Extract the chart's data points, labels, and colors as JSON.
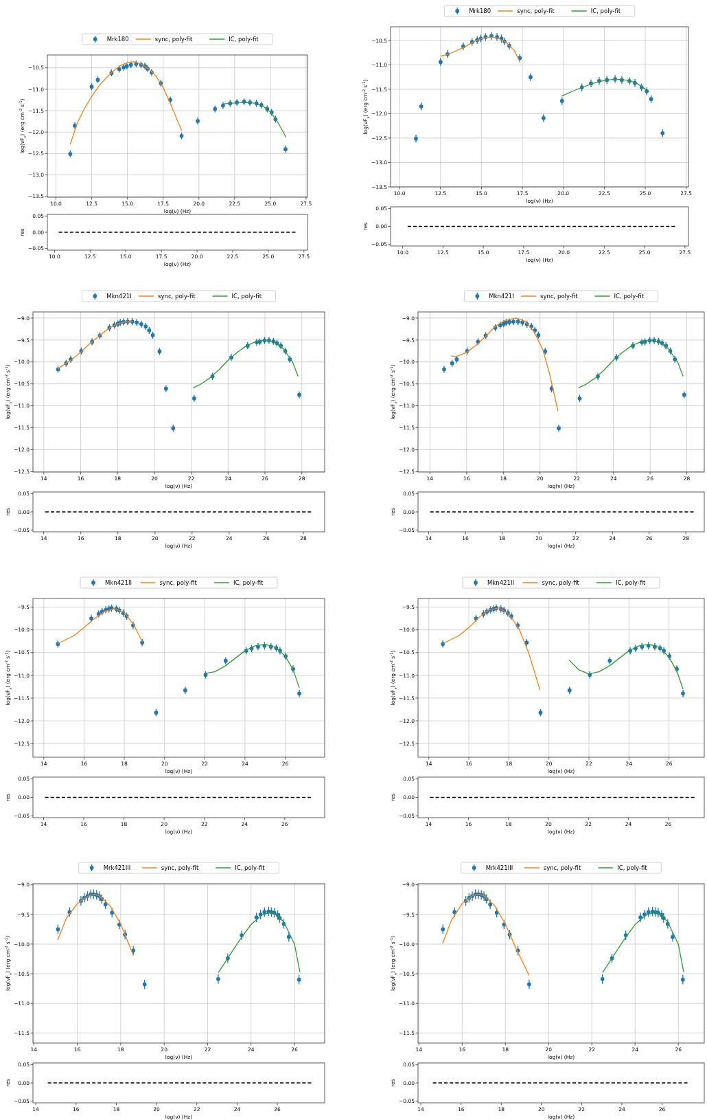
{
  "chart_data": [
    {
      "type": "scatter",
      "xlabel": "log(ν)  (Hz)",
      "ylabel": "log(νF$_{ν}$)  (erg cm$^{-2}$ s$^{-1}$)",
      "xlim": [
        9.4,
        27.6
      ],
      "ylim": [
        -13.52,
        -10.2
      ],
      "xticks": [
        {
          "value": 10,
          "label": "10.0"
        },
        12.5,
        {
          "value": 15,
          "label": "15.0"
        },
        17.5,
        {
          "value": 20,
          "label": "20.0"
        },
        22.5,
        {
          "value": 25,
          "label": "25.0"
        },
        27.5
      ],
      "yticks": [
        {
          "value": -10.5,
          "label": "−10.5"
        },
        {
          "value": -11,
          "label": "−11.0"
        },
        {
          "value": -11.5,
          "label": "−11.5"
        },
        {
          "value": -12,
          "label": "−12.0"
        },
        {
          "value": -12.5,
          "label": "−12.5"
        },
        {
          "value": -13,
          "label": "−13.0"
        },
        {
          "value": -13.5,
          "label": "−13.5"
        }
      ],
      "grid": true,
      "legend": "top",
      "series": [
        {
          "type": "scatter",
          "name": "Mrk180",
          "color": "#1f77b4",
          "marker": "circle",
          "x": [
            11.0,
            11.32,
            12.5,
            12.93,
            13.89,
            14.43,
            14.74,
            14.96,
            15.25,
            15.61,
            15.95,
            16.22,
            16.41,
            16.7,
            17.34,
            18.0,
            18.79,
            19.92,
            21.13,
            21.69,
            22.19,
            22.66,
            23.16,
            23.57,
            24.03,
            24.37,
            24.78,
            25.09,
            25.36,
            26.06
          ],
          "values": [
            -12.51,
            -11.85,
            -10.94,
            -10.78,
            -10.62,
            -10.53,
            -10.49,
            -10.46,
            -10.43,
            -10.41,
            -10.43,
            -10.46,
            -10.52,
            -10.61,
            -10.86,
            -11.25,
            -12.09,
            -11.74,
            -11.46,
            -11.38,
            -11.33,
            -11.31,
            -11.29,
            -11.31,
            -11.33,
            -11.37,
            -11.46,
            -11.54,
            -11.7,
            -12.4
          ],
          "errors": [
            0.08,
            0.08,
            0.08,
            0.08,
            0.08,
            0.08,
            0.08,
            0.08,
            0.08,
            0.08,
            0.08,
            0.08,
            0.08,
            0.08,
            0.08,
            0.08,
            0.08,
            0.08,
            0.08,
            0.08,
            0.08,
            0.08,
            0.08,
            0.08,
            0.08,
            0.08,
            0.08,
            0.08,
            0.08,
            0.08
          ]
        },
        {
          "type": "line",
          "name": "sync, poly-fit",
          "color": "#ff7f0e",
          "x": [
            11.0,
            11.5,
            12.0,
            12.5,
            13.0,
            13.5,
            14.0,
            14.5,
            15.0,
            15.5,
            16.0,
            16.5,
            17.0,
            17.5,
            18.0,
            18.5,
            18.8
          ],
          "values": [
            -12.29,
            -11.78,
            -11.45,
            -11.17,
            -10.93,
            -10.74,
            -10.58,
            -10.45,
            -10.38,
            -10.36,
            -10.42,
            -10.53,
            -10.69,
            -10.96,
            -11.33,
            -11.73,
            -11.97
          ]
        },
        {
          "type": "line",
          "name": "IC, poly-fit",
          "color": "#2ca02c",
          "x": [
            21.7,
            22.5,
            23.3,
            24.0,
            24.5,
            25.0,
            25.5,
            26.1
          ],
          "values": [
            -11.34,
            -11.32,
            -11.31,
            -11.33,
            -11.4,
            -11.53,
            -11.76,
            -12.12
          ]
        }
      ]
    },
    {
      "type": "scatter",
      "xlabel": "log(ν)  (Hz)",
      "ylabel": "log(νF$_{ν}$)  (erg cm$^{-2}$ s$^{-1}$)",
      "xlim": [
        9.45,
        27.64
      ],
      "ylim": [
        -13.5,
        -10.22
      ],
      "xticks": [
        {
          "value": 10,
          "label": "10.0"
        },
        12.5,
        {
          "value": 15,
          "label": "15.0"
        },
        17.5,
        {
          "value": 20,
          "label": "20.0"
        },
        22.5,
        {
          "value": 25,
          "label": "25.0"
        },
        27.5
      ],
      "yticks": [
        {
          "value": -10.5,
          "label": "−10.5"
        },
        {
          "value": -11,
          "label": "−11.0"
        },
        {
          "value": -11.5,
          "label": "−11.5"
        },
        {
          "value": -12,
          "label": "−12.0"
        },
        {
          "value": -12.5,
          "label": "−12.5"
        },
        {
          "value": -13,
          "label": "−13.0"
        },
        {
          "value": -13.5,
          "label": "−13.5"
        }
      ],
      "grid": true,
      "legend": "top",
      "series": [
        {
          "type": "scatter",
          "name": "Mrk180",
          "color": "#1f77b4",
          "marker": "circle",
          "x": [
            11.0,
            11.32,
            12.5,
            12.93,
            13.89,
            14.43,
            14.74,
            14.96,
            15.25,
            15.61,
            15.95,
            16.22,
            16.41,
            16.7,
            17.34,
            18.0,
            18.79,
            19.92,
            21.13,
            21.69,
            22.19,
            22.66,
            23.16,
            23.57,
            24.03,
            24.37,
            24.78,
            25.09,
            25.36,
            26.06
          ],
          "values": [
            -12.51,
            -11.85,
            -10.94,
            -10.78,
            -10.62,
            -10.53,
            -10.49,
            -10.46,
            -10.43,
            -10.41,
            -10.43,
            -10.46,
            -10.52,
            -10.61,
            -10.86,
            -11.25,
            -12.09,
            -11.74,
            -11.46,
            -11.38,
            -11.33,
            -11.31,
            -11.29,
            -11.31,
            -11.33,
            -11.37,
            -11.46,
            -11.54,
            -11.7,
            -12.4
          ],
          "errors": [
            0.08,
            0.08,
            0.08,
            0.08,
            0.08,
            0.08,
            0.08,
            0.08,
            0.08,
            0.08,
            0.08,
            0.08,
            0.08,
            0.08,
            0.08,
            0.08,
            0.08,
            0.08,
            0.08,
            0.08,
            0.08,
            0.08,
            0.08,
            0.08,
            0.08,
            0.08,
            0.08,
            0.08,
            0.08,
            0.08
          ]
        },
        {
          "type": "line",
          "name": "sync, poly-fit",
          "color": "#ff7f0e",
          "x": [
            12.5,
            13.0,
            14.0,
            14.5,
            15.0,
            15.5,
            16.0,
            16.5,
            17.0,
            17.35
          ],
          "values": [
            -10.82,
            -10.78,
            -10.63,
            -10.53,
            -10.46,
            -10.43,
            -10.45,
            -10.54,
            -10.7,
            -10.93
          ]
        },
        {
          "type": "line",
          "name": "IC, poly-fit",
          "color": "#2ca02c",
          "x": [
            19.9,
            20.5,
            21.0,
            21.5,
            22.0,
            22.5,
            23.0,
            23.5,
            24.0,
            24.5,
            25.1
          ],
          "values": [
            -11.64,
            -11.55,
            -11.48,
            -11.42,
            -11.36,
            -11.32,
            -11.3,
            -11.3,
            -11.32,
            -11.38,
            -11.52
          ]
        }
      ]
    },
    {
      "type": "line",
      "xlabel": "log(ν)  (Hz)",
      "ylabel": "res",
      "xlim": [
        9.5,
        27.75
      ],
      "ylim": [
        -0.055,
        0.055
      ],
      "xticks": [
        {
          "value": 10,
          "label": "10.0"
        },
        12.5,
        {
          "value": 15,
          "label": "15.0"
        },
        17.5,
        {
          "value": 20,
          "label": "20.0"
        },
        22.5,
        {
          "value": 25,
          "label": "25.0"
        },
        27.5
      ],
      "yticks": [
        {
          "value": 0.05,
          "label": "0.05"
        },
        {
          "value": 0,
          "label": "0.00"
        },
        {
          "value": -0.05,
          "label": "−0.05"
        }
      ],
      "series": [
        {
          "color": "#000000",
          "line_style": "dashed",
          "x": [
            10.3,
            26.9
          ],
          "values": [
            0,
            0
          ]
        }
      ]
    },
    {
      "type": "line",
      "xlabel": "log(ν)  (Hz)",
      "ylabel": "res",
      "xlim": [
        9.25,
        27.72
      ],
      "ylim": [
        -0.055,
        0.055
      ],
      "xticks": [
        {
          "value": 10,
          "label": "10.0"
        },
        12.5,
        {
          "value": 15,
          "label": "15.0"
        },
        17.5,
        {
          "value": 20,
          "label": "20.0"
        },
        22.5,
        {
          "value": 25,
          "label": "25.0"
        },
        27.5
      ],
      "yticks": [
        {
          "value": 0.05,
          "label": "0.05"
        },
        {
          "value": 0,
          "label": "0.00"
        },
        {
          "value": -0.05,
          "label": "−0.05"
        }
      ],
      "series": [
        {
          "color": "#000000",
          "line_style": "dashed",
          "x": [
            10.31,
            26.88
          ],
          "values": [
            0,
            0
          ]
        }
      ]
    },
    {
      "type": "scatter",
      "xlabel": "log(ν)  (Hz)",
      "ylabel": "log(νF$_{ν}$)  (erg cm$^{-2}$ s$^{-1}$)",
      "xlim": [
        13.41,
        29.24
      ],
      "ylim": [
        -12.51,
        -8.86
      ],
      "xticks": [
        14,
        16,
        18,
        20,
        22,
        24,
        26,
        28
      ],
      "yticks": [
        {
          "value": -9,
          "label": "−9.0"
        },
        {
          "value": -9.5,
          "label": "−9.5"
        },
        {
          "value": -10,
          "label": "−10.0"
        },
        {
          "value": -10.5,
          "label": "−10.5"
        },
        {
          "value": -11,
          "label": "−11.0"
        },
        {
          "value": -11.5,
          "label": "−11.5"
        },
        {
          "value": -12,
          "label": "−12.0"
        },
        {
          "value": -12.5,
          "label": "−12.5"
        }
      ],
      "grid": true,
      "legend": "top",
      "series": [
        {
          "type": "scatter",
          "name": "Mkn421I",
          "color": "#1f77b4",
          "marker": "circle",
          "x": [
            14.77,
            15.21,
            15.46,
            16.03,
            16.62,
            17.04,
            17.56,
            17.83,
            18.02,
            18.15,
            18.33,
            18.55,
            18.8,
            19.04,
            19.29,
            19.53,
            19.72,
            19.91,
            20.28,
            20.63,
            21.02,
            22.16,
            23.15,
            24.17,
            25.06,
            25.55,
            25.72,
            25.98,
            26.22,
            26.46,
            26.65,
            26.86,
            27.1,
            27.35,
            27.86
          ],
          "values": [
            -10.17,
            -10.03,
            -9.94,
            -9.75,
            -9.54,
            -9.4,
            -9.22,
            -9.16,
            -9.13,
            -9.1,
            -9.09,
            -9.08,
            -9.08,
            -9.1,
            -9.14,
            -9.19,
            -9.28,
            -9.39,
            -9.76,
            -10.61,
            -11.51,
            -10.83,
            -10.33,
            -9.9,
            -9.63,
            -9.55,
            -9.54,
            -9.51,
            -9.51,
            -9.53,
            -9.57,
            -9.63,
            -9.75,
            -9.94,
            -10.75
          ],
          "errors": [
            0.08,
            0.08,
            0.08,
            0.08,
            0.08,
            0.08,
            0.08,
            0.08,
            0.08,
            0.08,
            0.08,
            0.08,
            0.08,
            0.08,
            0.08,
            0.08,
            0.08,
            0.08,
            0.08,
            0.08,
            0.08,
            0.08,
            0.08,
            0.08,
            0.08,
            0.08,
            0.08,
            0.08,
            0.08,
            0.08,
            0.08,
            0.08,
            0.08,
            0.08,
            0.08
          ]
        },
        {
          "type": "line",
          "name": "sync, poly-fit",
          "color": "#ff7f0e",
          "x": [
            14.77,
            15.5,
            16.0,
            16.5,
            17.0,
            17.5,
            18.0,
            18.5,
            18.8
          ],
          "values": [
            -10.15,
            -9.95,
            -9.78,
            -9.58,
            -9.41,
            -9.24,
            -9.13,
            -9.08,
            -9.07
          ]
        },
        {
          "type": "line",
          "name": "IC, poly-fit",
          "color": "#2ca02c",
          "x": [
            22.1,
            22.5,
            23.0,
            23.5,
            24.0,
            24.5,
            25.0,
            25.5,
            26.0,
            26.5,
            27.0,
            27.5,
            27.8
          ],
          "values": [
            -10.59,
            -10.51,
            -10.37,
            -10.18,
            -9.96,
            -9.78,
            -9.63,
            -9.54,
            -9.5,
            -9.54,
            -9.7,
            -10.0,
            -10.33
          ]
        }
      ]
    },
    {
      "type": "scatter",
      "xlabel": "log(ν)  (Hz)",
      "ylabel": "log(νF$_{ν}$)  (erg cm$^{-2}$ s$^{-1}$)",
      "xlim": [
        13.35,
        28.95
      ],
      "ylim": [
        -12.51,
        -8.86
      ],
      "xticks": [
        14,
        16,
        18,
        20,
        22,
        24,
        26,
        28
      ],
      "yticks": [
        {
          "value": -9,
          "label": "−9.0"
        },
        {
          "value": -9.5,
          "label": "−9.5"
        },
        {
          "value": -10,
          "label": "−10.0"
        },
        {
          "value": -10.5,
          "label": "−10.5"
        },
        {
          "value": -11,
          "label": "−11.0"
        },
        {
          "value": -11.5,
          "label": "−11.5"
        },
        {
          "value": -12,
          "label": "−12.0"
        },
        {
          "value": -12.5,
          "label": "−12.5"
        }
      ],
      "grid": true,
      "legend": "top",
      "series": [
        {
          "type": "scatter",
          "name": "Mkn421I",
          "color": "#1f77b4",
          "marker": "circle",
          "x": [
            14.77,
            15.21,
            15.46,
            16.03,
            16.62,
            17.04,
            17.56,
            17.83,
            18.02,
            18.15,
            18.33,
            18.55,
            18.8,
            19.04,
            19.29,
            19.53,
            19.72,
            19.91,
            20.28,
            20.63,
            21.02,
            22.16,
            23.15,
            24.17,
            25.06,
            25.55,
            25.72,
            25.98,
            26.22,
            26.46,
            26.65,
            26.86,
            27.1,
            27.35,
            27.86
          ],
          "values": [
            -10.17,
            -10.03,
            -9.94,
            -9.75,
            -9.54,
            -9.4,
            -9.22,
            -9.16,
            -9.13,
            -9.1,
            -9.09,
            -9.08,
            -9.08,
            -9.1,
            -9.14,
            -9.19,
            -9.28,
            -9.39,
            -9.76,
            -10.61,
            -11.51,
            -10.83,
            -10.33,
            -9.9,
            -9.63,
            -9.55,
            -9.54,
            -9.51,
            -9.51,
            -9.53,
            -9.57,
            -9.63,
            -9.75,
            -9.94,
            -10.75
          ],
          "errors": [
            0.08,
            0.08,
            0.08,
            0.08,
            0.08,
            0.08,
            0.08,
            0.08,
            0.08,
            0.08,
            0.08,
            0.08,
            0.08,
            0.08,
            0.08,
            0.08,
            0.08,
            0.08,
            0.08,
            0.08,
            0.08,
            0.08,
            0.08,
            0.08,
            0.08,
            0.08,
            0.08,
            0.08,
            0.08,
            0.08,
            0.08,
            0.08,
            0.08,
            0.08,
            0.08
          ]
        },
        {
          "type": "line",
          "name": "sync, poly-fit",
          "color": "#ff7f0e",
          "x": [
            15.16,
            15.41,
            15.96,
            16.58,
            17.07,
            17.56,
            18.06,
            18.67,
            19.17,
            19.66,
            20.15,
            20.52,
            20.98
          ],
          "values": [
            -9.86,
            -9.88,
            -9.79,
            -9.6,
            -9.4,
            -9.19,
            -9.06,
            -9.0,
            -9.07,
            -9.3,
            -9.72,
            -10.27,
            -11.12
          ]
        },
        {
          "type": "line",
          "name": "IC, poly-fit",
          "color": "#2ca02c",
          "x": [
            22.1,
            22.5,
            23.0,
            23.5,
            24.0,
            24.5,
            25.0,
            25.5,
            26.0,
            26.5,
            27.0,
            27.5,
            27.8
          ],
          "values": [
            -10.59,
            -10.51,
            -10.37,
            -10.18,
            -9.96,
            -9.78,
            -9.63,
            -9.54,
            -9.5,
            -9.54,
            -9.7,
            -10.0,
            -10.33
          ]
        }
      ]
    },
    {
      "type": "line",
      "xlabel": "log(ν)  (Hz)",
      "ylabel": "res",
      "xlim": [
        13.42,
        29.15
      ],
      "ylim": [
        -0.055,
        0.055
      ],
      "xticks": [
        14,
        16,
        18,
        20,
        22,
        24,
        26,
        28
      ],
      "yticks": [
        {
          "value": 0.05,
          "label": "0.05"
        },
        {
          "value": 0,
          "label": "0.00"
        },
        {
          "value": -0.05,
          "label": "−0.05"
        }
      ],
      "series": [
        {
          "color": "#000000",
          "line_style": "dashed",
          "x": [
            14.08,
            28.42
          ],
          "values": [
            0,
            0
          ]
        }
      ]
    },
    {
      "type": "line",
      "xlabel": "log(ν)  (Hz)",
      "ylabel": "res",
      "xlim": [
        13.42,
        29.0
      ],
      "ylim": [
        -0.055,
        0.055
      ],
      "xticks": [
        14,
        16,
        18,
        20,
        22,
        24,
        26,
        28
      ],
      "yticks": [
        {
          "value": 0.05,
          "label": "0.05"
        },
        {
          "value": 0,
          "label": "0.00"
        },
        {
          "value": -0.05,
          "label": "−0.05"
        }
      ],
      "series": [
        {
          "color": "#000000",
          "line_style": "dashed",
          "x": [
            14.08,
            28.42
          ],
          "values": [
            0,
            0
          ]
        }
      ]
    },
    {
      "type": "scatter",
      "xlabel": "log(ν)  (Hz)",
      "ylabel": "log(νF$_{ν}$)  (erg cm$^{-2}$ s$^{-1}$)",
      "xlim": [
        13.46,
        27.96
      ],
      "ylim": [
        -12.8,
        -9.31
      ],
      "xticks": [
        14,
        16,
        18,
        20,
        22,
        24,
        26
      ],
      "yticks": [
        {
          "value": -9.5,
          "label": "−9.5"
        },
        {
          "value": -10,
          "label": "−10.0"
        },
        {
          "value": -10.5,
          "label": "−10.5"
        },
        {
          "value": -11,
          "label": "−11.0"
        },
        {
          "value": -11.5,
          "label": "−11.5"
        },
        {
          "value": -12,
          "label": "−12.0"
        },
        {
          "value": -12.5,
          "label": "−12.5"
        }
      ],
      "grid": true,
      "legend": "top",
      "series": [
        {
          "type": "scatter",
          "name": "Mkn421II",
          "color": "#1f77b4",
          "marker": "circle",
          "x": [
            14.7,
            16.36,
            16.73,
            16.9,
            17.08,
            17.24,
            17.37,
            17.6,
            17.75,
            17.95,
            18.12,
            18.44,
            18.89,
            19.58,
            21.03,
            22.04,
            23.04,
            24.06,
            24.33,
            24.65,
            24.97,
            25.29,
            25.55,
            25.74,
            26.02,
            26.39,
            26.7
          ],
          "values": [
            -10.31,
            -9.75,
            -9.65,
            -9.6,
            -9.56,
            -9.54,
            -9.52,
            -9.54,
            -9.57,
            -9.63,
            -9.7,
            -9.9,
            -10.28,
            -11.82,
            -11.33,
            -10.99,
            -10.68,
            -10.46,
            -10.41,
            -10.37,
            -10.35,
            -10.37,
            -10.4,
            -10.46,
            -10.58,
            -10.86,
            -11.4
          ],
          "errors": [
            0.08,
            0.08,
            0.08,
            0.08,
            0.08,
            0.08,
            0.08,
            0.08,
            0.08,
            0.08,
            0.08,
            0.08,
            0.08,
            0.08,
            0.08,
            0.08,
            0.08,
            0.08,
            0.08,
            0.08,
            0.08,
            0.08,
            0.08,
            0.08,
            0.08,
            0.08,
            0.08
          ]
        },
        {
          "type": "line",
          "name": "sync, poly-fit",
          "color": "#ff7f0e",
          "x": [
            14.7,
            15.5,
            16.0,
            16.5,
            17.0,
            17.5,
            18.0,
            18.5,
            18.9
          ],
          "values": [
            -10.3,
            -10.13,
            -9.95,
            -9.76,
            -9.6,
            -9.53,
            -9.62,
            -9.91,
            -10.27
          ]
        },
        {
          "type": "line",
          "name": "IC, poly-fit",
          "color": "#2ca02c",
          "x": [
            22.0,
            22.5,
            23.0,
            23.5,
            24.0,
            24.5,
            25.0,
            25.5,
            26.0,
            26.4,
            26.7
          ],
          "values": [
            -10.96,
            -10.92,
            -10.8,
            -10.63,
            -10.46,
            -10.35,
            -10.32,
            -10.38,
            -10.58,
            -10.88,
            -11.28
          ]
        }
      ]
    },
    {
      "type": "scatter",
      "xlabel": "log(ν)  (Hz)",
      "ylabel": "log(νF$_{ν}$)  (erg cm$^{-2}$ s$^{-1}$)",
      "xlim": [
        13.46,
        27.76
      ],
      "ylim": [
        -12.8,
        -9.31
      ],
      "xticks": [
        14,
        16,
        18,
        20,
        22,
        24,
        26
      ],
      "yticks": [
        {
          "value": -9.5,
          "label": "−9.5"
        },
        {
          "value": -10,
          "label": "−10.0"
        },
        {
          "value": -10.5,
          "label": "−10.5"
        },
        {
          "value": -11,
          "label": "−11.0"
        },
        {
          "value": -11.5,
          "label": "−11.5"
        },
        {
          "value": -12,
          "label": "−12.0"
        },
        {
          "value": -12.5,
          "label": "−12.5"
        }
      ],
      "grid": true,
      "legend": "top",
      "series": [
        {
          "type": "scatter",
          "name": "Mkn421II",
          "color": "#1f77b4",
          "marker": "circle",
          "x": [
            14.7,
            16.36,
            16.73,
            16.9,
            17.08,
            17.24,
            17.37,
            17.6,
            17.75,
            17.95,
            18.12,
            18.44,
            18.89,
            19.58,
            21.03,
            22.04,
            23.04,
            24.06,
            24.33,
            24.65,
            24.97,
            25.29,
            25.55,
            25.74,
            26.02,
            26.39,
            26.7
          ],
          "values": [
            -10.31,
            -9.75,
            -9.65,
            -9.6,
            -9.56,
            -9.54,
            -9.52,
            -9.54,
            -9.57,
            -9.63,
            -9.7,
            -9.9,
            -10.28,
            -11.82,
            -11.33,
            -10.99,
            -10.68,
            -10.46,
            -10.41,
            -10.37,
            -10.35,
            -10.37,
            -10.4,
            -10.46,
            -10.58,
            -10.86,
            -11.4
          ],
          "errors": [
            0.08,
            0.08,
            0.08,
            0.08,
            0.08,
            0.08,
            0.08,
            0.08,
            0.08,
            0.08,
            0.08,
            0.08,
            0.08,
            0.08,
            0.08,
            0.08,
            0.08,
            0.08,
            0.08,
            0.08,
            0.08,
            0.08,
            0.08,
            0.08,
            0.08,
            0.08,
            0.08
          ]
        },
        {
          "type": "line",
          "name": "sync, poly-fit",
          "color": "#ff7f0e",
          "x": [
            14.7,
            15.5,
            16.0,
            16.5,
            17.0,
            17.5,
            18.0,
            18.5,
            19.0,
            19.55
          ],
          "values": [
            -10.3,
            -10.13,
            -9.95,
            -9.73,
            -9.56,
            -9.52,
            -9.65,
            -9.97,
            -10.52,
            -11.32
          ]
        },
        {
          "type": "line",
          "name": "IC, poly-fit",
          "color": "#2ca02c",
          "x": [
            21.0,
            21.5,
            22.0,
            22.5,
            23.0,
            23.5,
            24.0,
            24.5,
            25.0,
            25.5,
            26.0,
            26.4,
            26.7
          ],
          "values": [
            -10.66,
            -10.88,
            -10.97,
            -10.92,
            -10.8,
            -10.63,
            -10.46,
            -10.35,
            -10.32,
            -10.38,
            -10.6,
            -10.92,
            -11.3
          ]
        }
      ]
    },
    {
      "type": "line",
      "xlabel": "log(ν)  (Hz)",
      "ylabel": "res",
      "xlim": [
        13.47,
        27.99
      ],
      "ylim": [
        -0.055,
        0.055
      ],
      "xticks": [
        14,
        16,
        18,
        20,
        22,
        24,
        26
      ],
      "yticks": [
        {
          "value": 0.05,
          "label": "0.05"
        },
        {
          "value": 0,
          "label": "0.00"
        },
        {
          "value": -0.05,
          "label": "−0.05"
        }
      ],
      "series": [
        {
          "color": "#000000",
          "line_style": "dashed",
          "x": [
            14.07,
            27.31
          ],
          "values": [
            0,
            0
          ]
        }
      ]
    },
    {
      "type": "line",
      "xlabel": "log(ν)  (Hz)",
      "ylabel": "res",
      "xlim": [
        13.47,
        27.8
      ],
      "ylim": [
        -0.055,
        0.055
      ],
      "xticks": [
        14,
        16,
        18,
        20,
        22,
        24,
        26
      ],
      "yticks": [
        {
          "value": 0.05,
          "label": "0.05"
        },
        {
          "value": 0,
          "label": "0.00"
        },
        {
          "value": -0.05,
          "label": "−0.05"
        }
      ],
      "series": [
        {
          "color": "#000000",
          "line_style": "dashed",
          "x": [
            14.07,
            27.31
          ],
          "values": [
            0,
            0
          ]
        }
      ]
    },
    {
      "type": "scatter",
      "xlabel": "log(ν)  (Hz)",
      "ylabel": "log(νF$_{ν}$)  (erg cm$^{-2}$ s$^{-1}$)",
      "xlim": [
        13.96,
        27.39
      ],
      "ylim": [
        -11.67,
        -8.98
      ],
      "xticks": [
        14,
        16,
        18,
        20,
        22,
        24,
        26
      ],
      "yticks": [
        {
          "value": -9,
          "label": "−9.0"
        },
        {
          "value": -9.5,
          "label": "−9.5"
        },
        {
          "value": -10,
          "label": "−10.0"
        },
        {
          "value": -10.5,
          "label": "−10.5"
        },
        {
          "value": -11,
          "label": "−11.0"
        },
        {
          "value": -11.5,
          "label": "−11.5"
        }
      ],
      "grid": true,
      "legend": "top",
      "series": [
        {
          "type": "scatter",
          "name": "Mrk421III",
          "color": "#1f77b4",
          "marker": "circle",
          "x": [
            15.11,
            15.65,
            16.17,
            16.32,
            16.47,
            16.62,
            16.75,
            16.89,
            17.01,
            17.13,
            17.3,
            17.6,
            17.94,
            18.2,
            18.58,
            19.1,
            22.49,
            22.93,
            23.57,
            24.25,
            24.44,
            24.62,
            24.81,
            24.94,
            25.07,
            25.23,
            25.32,
            25.51,
            25.74,
            26.21
          ],
          "values": [
            -9.75,
            -9.46,
            -9.27,
            -9.22,
            -9.19,
            -9.16,
            -9.16,
            -9.17,
            -9.19,
            -9.24,
            -9.33,
            -9.47,
            -9.67,
            -9.84,
            -10.11,
            -10.68,
            -10.59,
            -10.24,
            -9.85,
            -9.55,
            -9.5,
            -9.46,
            -9.45,
            -9.46,
            -9.47,
            -9.51,
            -9.56,
            -9.66,
            -9.88,
            -10.6
          ],
          "errors": [
            0.08,
            0.08,
            0.08,
            0.08,
            0.08,
            0.08,
            0.08,
            0.08,
            0.08,
            0.08,
            0.08,
            0.08,
            0.08,
            0.08,
            0.08,
            0.08,
            0.08,
            0.08,
            0.08,
            0.08,
            0.08,
            0.08,
            0.08,
            0.08,
            0.08,
            0.08,
            0.08,
            0.08,
            0.08,
            0.08
          ]
        },
        {
          "type": "line",
          "name": "sync, poly-fit",
          "color": "#ff7f0e",
          "x": [
            15.1,
            15.5,
            16.0,
            16.5,
            16.8,
            17.0,
            17.5,
            18.0,
            18.58
          ],
          "values": [
            -9.93,
            -9.56,
            -9.32,
            -9.19,
            -9.16,
            -9.18,
            -9.35,
            -9.66,
            -10.19
          ]
        },
        {
          "type": "line",
          "name": "IC, poly-fit",
          "color": "#2ca02c",
          "x": [
            22.5,
            23.0,
            23.5,
            24.0,
            24.5,
            25.0,
            25.5,
            26.0,
            26.25
          ],
          "values": [
            -10.48,
            -10.2,
            -9.92,
            -9.67,
            -9.51,
            -9.46,
            -9.62,
            -10.0,
            -10.47
          ]
        }
      ]
    },
    {
      "type": "scatter",
      "xlabel": "log(ν)  (Hz)",
      "ylabel": "log(νF$_{ν}$)  (erg cm$^{-2}$ s$^{-1}$)",
      "xlim": [
        13.96,
        27.2
      ],
      "ylim": [
        -11.67,
        -8.98
      ],
      "xticks": [
        14,
        16,
        18,
        20,
        22,
        24,
        26
      ],
      "yticks": [
        {
          "value": -9,
          "label": "−9.0"
        },
        {
          "value": -9.5,
          "label": "−9.5"
        },
        {
          "value": -10,
          "label": "−10.0"
        },
        {
          "value": -10.5,
          "label": "−10.5"
        },
        {
          "value": -11,
          "label": "−11.0"
        },
        {
          "value": -11.5,
          "label": "−11.5"
        }
      ],
      "grid": true,
      "legend": "top",
      "series": [
        {
          "type": "scatter",
          "name": "Mrk421III",
          "color": "#1f77b4",
          "marker": "circle",
          "x": [
            15.11,
            15.65,
            16.17,
            16.32,
            16.47,
            16.62,
            16.75,
            16.89,
            17.01,
            17.13,
            17.3,
            17.6,
            17.94,
            18.2,
            18.58,
            19.1,
            22.49,
            22.93,
            23.57,
            24.25,
            24.44,
            24.62,
            24.81,
            24.94,
            25.07,
            25.23,
            25.32,
            25.51,
            25.74,
            26.21
          ],
          "values": [
            -9.75,
            -9.46,
            -9.27,
            -9.22,
            -9.19,
            -9.16,
            -9.16,
            -9.17,
            -9.19,
            -9.24,
            -9.33,
            -9.47,
            -9.67,
            -9.84,
            -10.11,
            -10.68,
            -10.59,
            -10.24,
            -9.85,
            -9.55,
            -9.5,
            -9.46,
            -9.45,
            -9.46,
            -9.47,
            -9.51,
            -9.56,
            -9.66,
            -9.88,
            -10.6
          ],
          "errors": [
            0.08,
            0.08,
            0.08,
            0.08,
            0.08,
            0.08,
            0.08,
            0.08,
            0.08,
            0.08,
            0.08,
            0.08,
            0.08,
            0.08,
            0.08,
            0.08,
            0.08,
            0.08,
            0.08,
            0.08,
            0.08,
            0.08,
            0.08,
            0.08,
            0.08,
            0.08,
            0.08,
            0.08,
            0.08,
            0.08
          ]
        },
        {
          "type": "line",
          "name": "sync, poly-fit",
          "color": "#ff7f0e",
          "x": [
            15.1,
            15.5,
            16.0,
            16.5,
            16.8,
            17.0,
            17.5,
            18.0,
            18.5,
            19.1
          ],
          "values": [
            -9.99,
            -9.6,
            -9.32,
            -9.18,
            -9.16,
            -9.18,
            -9.35,
            -9.66,
            -10.08,
            -10.53
          ]
        },
        {
          "type": "line",
          "name": "IC, poly-fit",
          "color": "#2ca02c",
          "x": [
            22.5,
            23.0,
            23.5,
            24.0,
            24.5,
            25.0,
            25.5,
            26.0,
            26.25
          ],
          "values": [
            -10.48,
            -10.2,
            -9.92,
            -9.67,
            -9.51,
            -9.46,
            -9.62,
            -10.0,
            -10.47
          ]
        }
      ]
    },
    {
      "type": "line",
      "xlabel": "log(ν)  (Hz)",
      "ylabel": "res",
      "xlim": [
        13.86,
        28.35
      ],
      "ylim": [
        -0.055,
        0.055
      ],
      "xticks": [
        14,
        16,
        18,
        20,
        22,
        24,
        26
      ],
      "yticks": [
        {
          "value": 0.05,
          "label": "0.05"
        },
        {
          "value": 0,
          "label": "0.00"
        },
        {
          "value": -0.05,
          "label": "−0.05"
        }
      ],
      "series": [
        {
          "color": "#000000",
          "line_style": "dashed",
          "x": [
            14.6,
            27.68
          ],
          "values": [
            0,
            0
          ]
        }
      ]
    },
    {
      "type": "line",
      "xlabel": "log(ν)  (Hz)",
      "ylabel": "res",
      "xlim": [
        13.86,
        28.1
      ],
      "ylim": [
        -0.055,
        0.055
      ],
      "xticks": [
        14,
        16,
        18,
        20,
        22,
        24,
        26
      ],
      "yticks": [
        {
          "value": 0.05,
          "label": "0.05"
        },
        {
          "value": 0,
          "label": "0.00"
        },
        {
          "value": -0.05,
          "label": "−0.05"
        }
      ],
      "series": [
        {
          "color": "#000000",
          "line_style": "dashed",
          "x": [
            14.6,
            27.27
          ],
          "values": [
            0,
            0
          ]
        }
      ]
    }
  ]
}
